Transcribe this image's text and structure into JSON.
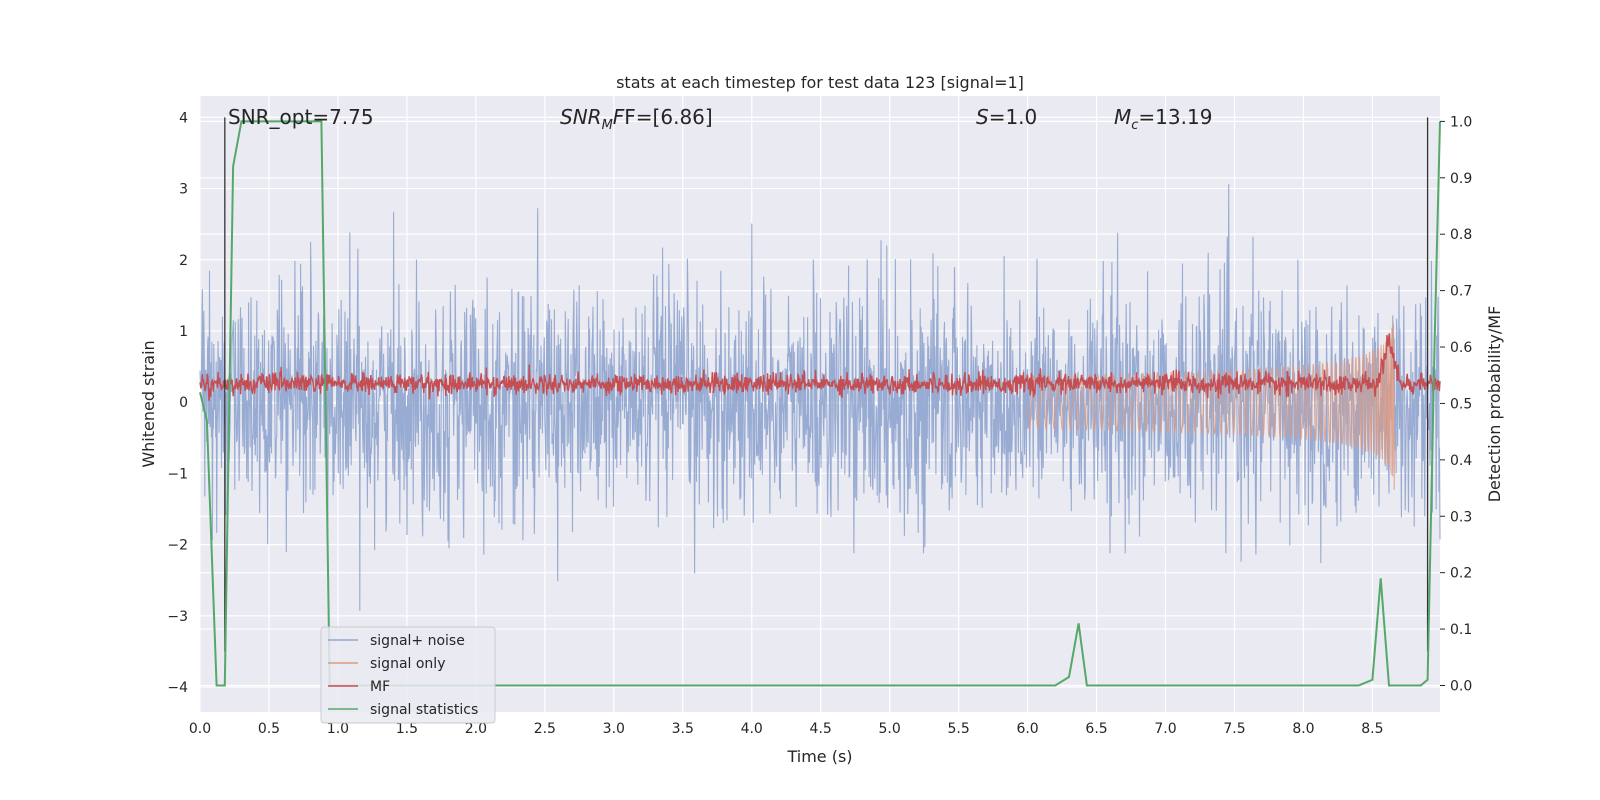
{
  "chart_data": {
    "type": "line",
    "title": "stats at each timestep for test data 123 [signal=1]",
    "xlabel": "Time (s)",
    "ylabel": "Whitened strain",
    "y2label": "Detection probability/MF",
    "xlim": [
      0.0,
      8.99
    ],
    "ylim": [
      -4.35,
      4.3
    ],
    "y2lim": [
      -0.047,
      1.045
    ],
    "xticks": [
      "0.0",
      "0.5",
      "1.0",
      "1.5",
      "2.0",
      "2.5",
      "3.0",
      "3.5",
      "4.0",
      "4.5",
      "5.0",
      "5.5",
      "6.0",
      "6.5",
      "7.0",
      "7.5",
      "8.0",
      "8.5"
    ],
    "yticks": [
      "4",
      "3",
      "2",
      "1",
      "0",
      "−1",
      "−2",
      "−3",
      "−4"
    ],
    "y2ticks": [
      "1.0",
      "0.9",
      "0.8",
      "0.7",
      "0.6",
      "0.5",
      "0.4",
      "0.3",
      "0.2",
      "0.1",
      "0.0"
    ],
    "grid": true,
    "legend_position": "lower-left",
    "annotations": {
      "snr_opt": "SNR_opt=7.75",
      "snr_mf_main": "SNR",
      "snr_mf_sub": "M",
      "snr_mf_tail": "F=[6.86]",
      "s_main": "S",
      "s_tail": "=1.0",
      "mc_main": "M",
      "mc_sub": "c",
      "mc_tail": "=13.19"
    },
    "vertical_lines": [
      0.18,
      8.9
    ],
    "series": [
      {
        "name": "signal+ noise",
        "color": "#94a8d0",
        "axis": "left",
        "amplitude_std": 0.8,
        "x_range": [
          0.0,
          8.99
        ]
      },
      {
        "name": "signal only",
        "color": "#dd9980",
        "axis": "left",
        "chirp_end_time": 8.66,
        "peak_amplitude": 1.4,
        "x_range": [
          6.0,
          8.66
        ]
      },
      {
        "name": "MF",
        "color": "#c44e52",
        "axis": "right",
        "baseline": 0.535,
        "peak_value": 0.63,
        "peak_time": 8.62,
        "x_range": [
          0.0,
          8.99
        ]
      },
      {
        "name": "signal statistics",
        "color": "#55a868",
        "axis": "right",
        "x": [
          0.0,
          0.05,
          0.12,
          0.18,
          0.24,
          0.3,
          0.82,
          0.88,
          0.94,
          1.0,
          6.2,
          6.3,
          6.37,
          6.43,
          6.5,
          8.4,
          8.5,
          8.56,
          8.62,
          8.68,
          8.85,
          8.9,
          8.95,
          8.99
        ],
        "values": [
          0.52,
          0.47,
          0.0,
          0.0,
          0.92,
          1.0,
          1.0,
          1.0,
          0.0,
          0.0,
          0.0,
          0.015,
          0.11,
          0.0,
          0.0,
          0.0,
          0.01,
          0.19,
          0.0,
          0.0,
          0.0,
          0.01,
          0.6,
          1.0
        ]
      }
    ]
  }
}
